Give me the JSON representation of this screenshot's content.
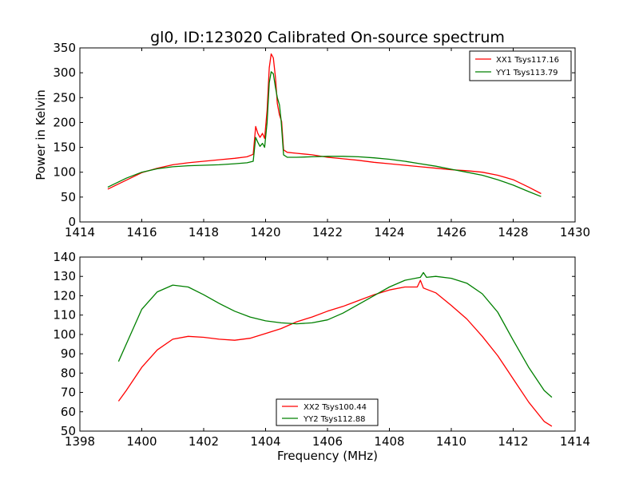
{
  "figure": {
    "title": "gl0, ID:123020 Calibrated On-source spectrum",
    "xlabel": "Frequency (MHz)"
  },
  "chart_data": [
    {
      "type": "line",
      "title": "gl0, ID:123020 Calibrated On-source spectrum",
      "xlabel": "",
      "ylabel": "Power in Kelvin",
      "xlim": [
        1414,
        1430
      ],
      "ylim": [
        0,
        350
      ],
      "xticks": [
        1414,
        1416,
        1418,
        1420,
        1422,
        1424,
        1426,
        1428,
        1430
      ],
      "yticks": [
        0,
        50,
        100,
        150,
        200,
        250,
        300,
        350
      ],
      "grid": false,
      "legend": "top-right",
      "series": [
        {
          "name": "XX1 Tsys117.16",
          "color": "#ff0000",
          "points": [
            [
              1414.9,
              66
            ],
            [
              1415.5,
              84
            ],
            [
              1416.0,
              99
            ],
            [
              1416.5,
              108
            ],
            [
              1417.0,
              115
            ],
            [
              1417.5,
              119
            ],
            [
              1418.0,
              122
            ],
            [
              1418.5,
              125
            ],
            [
              1419.0,
              128
            ],
            [
              1419.4,
              131
            ],
            [
              1419.6,
              136
            ],
            [
              1419.68,
              192
            ],
            [
              1419.75,
              178
            ],
            [
              1419.82,
              170
            ],
            [
              1419.9,
              178
            ],
            [
              1419.97,
              168
            ],
            [
              1420.05,
              225
            ],
            [
              1420.12,
              310
            ],
            [
              1420.18,
              338
            ],
            [
              1420.25,
              330
            ],
            [
              1420.32,
              290
            ],
            [
              1420.38,
              238
            ],
            [
              1420.45,
              215
            ],
            [
              1420.52,
              202
            ],
            [
              1420.58,
              145
            ],
            [
              1420.7,
              140
            ],
            [
              1421.0,
              138
            ],
            [
              1421.5,
              135
            ],
            [
              1422.0,
              130
            ],
            [
              1422.5,
              127
            ],
            [
              1423.0,
              124
            ],
            [
              1423.5,
              120
            ],
            [
              1424.0,
              117
            ],
            [
              1424.5,
              114
            ],
            [
              1425.0,
              111
            ],
            [
              1425.5,
              108
            ],
            [
              1426.0,
              105
            ],
            [
              1426.5,
              103
            ],
            [
              1427.0,
              100
            ],
            [
              1427.5,
              94
            ],
            [
              1428.0,
              85
            ],
            [
              1428.5,
              70
            ],
            [
              1428.9,
              57
            ]
          ]
        },
        {
          "name": "YY1 Tsys113.79",
          "color": "#008000",
          "points": [
            [
              1414.9,
              70
            ],
            [
              1415.5,
              88
            ],
            [
              1416.0,
              100
            ],
            [
              1416.5,
              107
            ],
            [
              1417.0,
              111
            ],
            [
              1417.5,
              113
            ],
            [
              1418.0,
              114
            ],
            [
              1418.5,
              115
            ],
            [
              1419.0,
              117
            ],
            [
              1419.4,
              119
            ],
            [
              1419.6,
              122
            ],
            [
              1419.68,
              170
            ],
            [
              1419.75,
              160
            ],
            [
              1419.82,
              152
            ],
            [
              1419.9,
              158
            ],
            [
              1419.97,
              150
            ],
            [
              1420.05,
              200
            ],
            [
              1420.12,
              280
            ],
            [
              1420.18,
              302
            ],
            [
              1420.25,
              298
            ],
            [
              1420.32,
              270
            ],
            [
              1420.38,
              250
            ],
            [
              1420.45,
              235
            ],
            [
              1420.5,
              205
            ],
            [
              1420.58,
              135
            ],
            [
              1420.7,
              130
            ],
            [
              1421.0,
              130
            ],
            [
              1421.5,
              131
            ],
            [
              1422.0,
              132
            ],
            [
              1422.5,
              132
            ],
            [
              1423.0,
              131
            ],
            [
              1423.5,
              129
            ],
            [
              1424.0,
              126
            ],
            [
              1424.5,
              122
            ],
            [
              1425.0,
              117
            ],
            [
              1425.5,
              112
            ],
            [
              1426.0,
              106
            ],
            [
              1426.5,
              100
            ],
            [
              1427.0,
              94
            ],
            [
              1427.5,
              85
            ],
            [
              1428.0,
              74
            ],
            [
              1428.5,
              61
            ],
            [
              1428.9,
              51
            ]
          ]
        }
      ]
    },
    {
      "type": "line",
      "title": "",
      "xlabel": "Frequency (MHz)",
      "ylabel": "",
      "xlim": [
        1398,
        1414
      ],
      "ylim": [
        50,
        140
      ],
      "xticks": [
        1398,
        1400,
        1402,
        1404,
        1406,
        1408,
        1410,
        1412,
        1414
      ],
      "yticks": [
        50,
        60,
        70,
        80,
        90,
        100,
        110,
        120,
        130,
        140
      ],
      "grid": false,
      "legend": "bottom-center",
      "series": [
        {
          "name": "XX2 Tsys100.44",
          "color": "#ff0000",
          "points": [
            [
              1399.25,
              65.5
            ],
            [
              1399.5,
              71
            ],
            [
              1400.0,
              83
            ],
            [
              1400.5,
              92
            ],
            [
              1401.0,
              97.5
            ],
            [
              1401.5,
              99
            ],
            [
              1402.0,
              98.5
            ],
            [
              1402.5,
              97.5
            ],
            [
              1403.0,
              97
            ],
            [
              1403.5,
              98
            ],
            [
              1404.0,
              100.5
            ],
            [
              1404.5,
              103
            ],
            [
              1405.0,
              106.5
            ],
            [
              1405.5,
              109
            ],
            [
              1406.0,
              112
            ],
            [
              1406.5,
              114.5
            ],
            [
              1407.0,
              117.5
            ],
            [
              1407.5,
              120.5
            ],
            [
              1408.0,
              123
            ],
            [
              1408.5,
              124.5
            ],
            [
              1408.9,
              124.5
            ],
            [
              1409.0,
              128
            ],
            [
              1409.1,
              124
            ],
            [
              1409.5,
              121.5
            ],
            [
              1410.0,
              115
            ],
            [
              1410.5,
              108
            ],
            [
              1411.0,
              99
            ],
            [
              1411.5,
              89
            ],
            [
              1412.0,
              77
            ],
            [
              1412.5,
              65
            ],
            [
              1413.0,
              55
            ],
            [
              1413.25,
              52.5
            ]
          ]
        },
        {
          "name": "YY2 Tsys112.88",
          "color": "#008000",
          "points": [
            [
              1399.25,
              86
            ],
            [
              1399.5,
              95
            ],
            [
              1400.0,
              113
            ],
            [
              1400.5,
              122
            ],
            [
              1401.0,
              125.5
            ],
            [
              1401.5,
              124.5
            ],
            [
              1402.0,
              120.5
            ],
            [
              1402.5,
              116
            ],
            [
              1403.0,
              112
            ],
            [
              1403.5,
              109
            ],
            [
              1404.0,
              107
            ],
            [
              1404.5,
              106
            ],
            [
              1405.0,
              105.5
            ],
            [
              1405.5,
              106
            ],
            [
              1406.0,
              107.5
            ],
            [
              1406.5,
              111
            ],
            [
              1407.0,
              115.5
            ],
            [
              1407.5,
              120
            ],
            [
              1408.0,
              124.5
            ],
            [
              1408.5,
              128
            ],
            [
              1409.0,
              129.5
            ],
            [
              1409.1,
              132
            ],
            [
              1409.2,
              129.5
            ],
            [
              1409.5,
              130
            ],
            [
              1410.0,
              129
            ],
            [
              1410.5,
              126.5
            ],
            [
              1411.0,
              121
            ],
            [
              1411.5,
              111.5
            ],
            [
              1412.0,
              97
            ],
            [
              1412.5,
              83
            ],
            [
              1413.0,
              71
            ],
            [
              1413.25,
              67.5
            ]
          ]
        }
      ]
    }
  ]
}
